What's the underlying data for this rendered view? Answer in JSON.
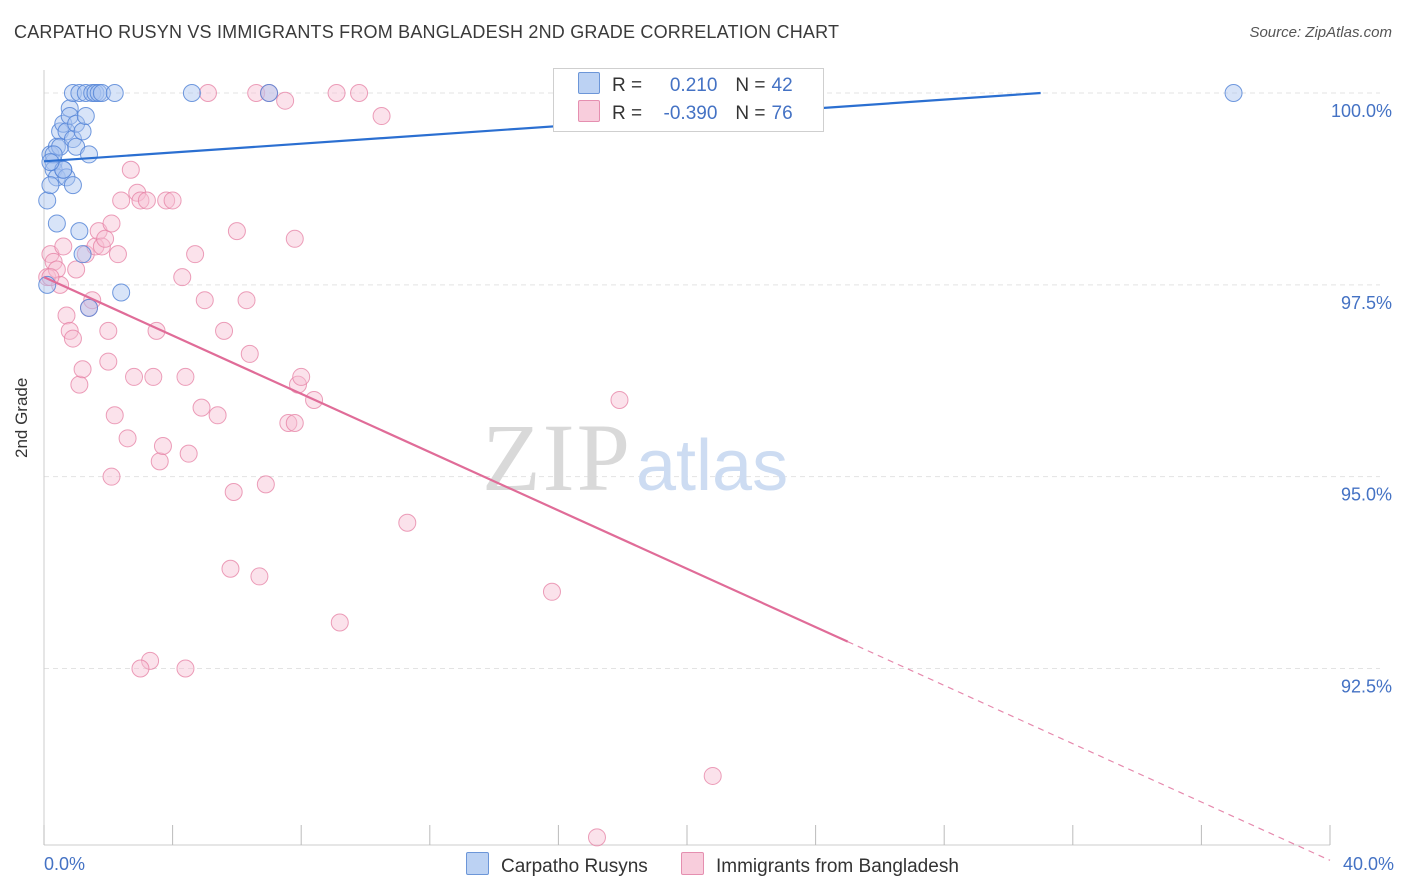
{
  "title": "CARPATHO RUSYN VS IMMIGRANTS FROM BANGLADESH 2ND GRADE CORRELATION CHART",
  "source": "Source: ZipAtlas.com",
  "watermark": {
    "zip": "ZIP",
    "atlas": "atlas"
  },
  "legend": {
    "r_label": "R =",
    "n_label": "N =",
    "series1": {
      "r": "0.210",
      "n": "42"
    },
    "series2": {
      "r": "-0.390",
      "n": "76"
    }
  },
  "colors": {
    "blue": "#4f81d6",
    "blue_fill": "#a9c4ef",
    "blue_line": "#2b6fd1",
    "pink": "#e57fa3",
    "pink_fill": "#f6bfd2",
    "pink_line": "#e06c98",
    "axis_text": "#4472c4",
    "grid": "#e3e3e3"
  },
  "chart_data": {
    "type": "scatter",
    "title": "CARPATHO RUSYN VS IMMIGRANTS FROM BANGLADESH 2ND GRADE CORRELATION CHART",
    "xlabel": "",
    "ylabel": "2nd Grade",
    "xlim": [
      0,
      40
    ],
    "ylim": [
      90.2,
      100.3
    ],
    "x_tick_labels": [
      "0.0%",
      "40.0%"
    ],
    "y_ticks": [
      92.5,
      95.0,
      97.5,
      100.0
    ],
    "y_tick_labels": [
      "92.5%",
      "95.0%",
      "97.5%",
      "100.0%"
    ],
    "grid": true,
    "legend_position": "top-center",
    "series": [
      {
        "name": "Carpatho Rusyns",
        "color": "#4f81d6",
        "r": 0.21,
        "n": 42,
        "trend": {
          "x0": 0.0,
          "y0": 99.11,
          "x1": 31.0,
          "y1": 100.0
        },
        "points": [
          [
            0.2,
            99.2
          ],
          [
            0.3,
            99.1
          ],
          [
            0.3,
            99.0
          ],
          [
            0.4,
            98.9
          ],
          [
            0.4,
            99.3
          ],
          [
            0.5,
            99.5
          ],
          [
            0.5,
            99.3
          ],
          [
            0.6,
            99.6
          ],
          [
            0.6,
            99.0
          ],
          [
            0.7,
            99.5
          ],
          [
            0.7,
            98.9
          ],
          [
            0.8,
            99.8
          ],
          [
            0.8,
            99.7
          ],
          [
            0.9,
            99.4
          ],
          [
            0.9,
            100.0
          ],
          [
            1.0,
            99.6
          ],
          [
            1.0,
            99.3
          ],
          [
            1.1,
            100.0
          ],
          [
            1.1,
            98.2
          ],
          [
            1.2,
            99.5
          ],
          [
            1.3,
            99.7
          ],
          [
            1.3,
            100.0
          ],
          [
            1.4,
            99.2
          ],
          [
            1.4,
            97.2
          ],
          [
            1.5,
            100.0
          ],
          [
            1.6,
            100.0
          ],
          [
            1.7,
            100.0
          ],
          [
            1.8,
            100.0
          ],
          [
            2.2,
            100.0
          ],
          [
            2.4,
            97.4
          ],
          [
            4.6,
            100.0
          ],
          [
            7.0,
            100.0
          ],
          [
            37.0,
            100.0
          ],
          [
            0.1,
            98.6
          ],
          [
            0.2,
            98.8
          ],
          [
            0.3,
            99.2
          ],
          [
            0.4,
            98.3
          ],
          [
            0.6,
            99.0
          ],
          [
            0.9,
            98.8
          ],
          [
            1.2,
            97.9
          ],
          [
            0.1,
            97.5
          ],
          [
            0.2,
            99.1
          ]
        ]
      },
      {
        "name": "Immigrants from Bangladesh",
        "color": "#e57fa3",
        "r": -0.39,
        "n": 76,
        "trend": {
          "x0": 0.0,
          "y0": 97.6,
          "x1": 25.0,
          "y1": 92.85,
          "x_dash_end": 40.0,
          "y_dash_end": 90.0
        },
        "points": [
          [
            0.1,
            97.6
          ],
          [
            0.2,
            97.9
          ],
          [
            0.3,
            97.8
          ],
          [
            0.4,
            97.7
          ],
          [
            0.5,
            97.5
          ],
          [
            0.6,
            98.0
          ],
          [
            0.7,
            97.1
          ],
          [
            0.8,
            96.9
          ],
          [
            0.9,
            96.8
          ],
          [
            1.0,
            97.7
          ],
          [
            1.1,
            96.2
          ],
          [
            1.2,
            96.4
          ],
          [
            1.3,
            97.9
          ],
          [
            1.4,
            97.2
          ],
          [
            1.5,
            97.3
          ],
          [
            1.6,
            98.0
          ],
          [
            1.7,
            98.2
          ],
          [
            1.8,
            98.0
          ],
          [
            1.9,
            98.1
          ],
          [
            2.0,
            96.9
          ],
          [
            2.0,
            96.5
          ],
          [
            2.1,
            98.3
          ],
          [
            2.1,
            95.0
          ],
          [
            2.2,
            95.8
          ],
          [
            2.3,
            97.9
          ],
          [
            2.4,
            98.6
          ],
          [
            2.6,
            95.5
          ],
          [
            2.7,
            99.0
          ],
          [
            2.8,
            96.3
          ],
          [
            2.9,
            98.7
          ],
          [
            3.0,
            98.6
          ],
          [
            3.2,
            98.6
          ],
          [
            3.3,
            92.6
          ],
          [
            3.4,
            96.3
          ],
          [
            3.5,
            96.9
          ],
          [
            3.6,
            95.2
          ],
          [
            3.7,
            95.4
          ],
          [
            3.8,
            98.6
          ],
          [
            4.0,
            98.6
          ],
          [
            4.3,
            97.6
          ],
          [
            4.4,
            96.3
          ],
          [
            4.5,
            95.3
          ],
          [
            4.7,
            97.9
          ],
          [
            4.9,
            95.9
          ],
          [
            5.0,
            97.3
          ],
          [
            5.1,
            100.0
          ],
          [
            5.4,
            95.8
          ],
          [
            5.6,
            96.9
          ],
          [
            5.8,
            93.8
          ],
          [
            5.9,
            94.8
          ],
          [
            6.0,
            98.2
          ],
          [
            6.3,
            97.3
          ],
          [
            6.4,
            96.6
          ],
          [
            6.6,
            100.0
          ],
          [
            6.7,
            93.7
          ],
          [
            6.9,
            94.9
          ],
          [
            7.0,
            100.0
          ],
          [
            7.5,
            99.9
          ],
          [
            7.6,
            95.7
          ],
          [
            7.8,
            95.7
          ],
          [
            7.9,
            96.2
          ],
          [
            7.8,
            98.1
          ],
          [
            8.0,
            96.3
          ],
          [
            8.4,
            96.0
          ],
          [
            9.1,
            100.0
          ],
          [
            9.2,
            93.1
          ],
          [
            9.8,
            100.0
          ],
          [
            10.5,
            99.7
          ],
          [
            11.3,
            94.4
          ],
          [
            15.8,
            93.5
          ],
          [
            17.9,
            96.0
          ],
          [
            17.2,
            90.3
          ],
          [
            20.8,
            91.1
          ],
          [
            3.0,
            92.5
          ],
          [
            4.4,
            92.5
          ],
          [
            0.2,
            97.6
          ]
        ]
      }
    ]
  },
  "bottom_legend": {
    "series1": "Carpatho Rusyns",
    "series2": "Immigrants from Bangladesh"
  }
}
